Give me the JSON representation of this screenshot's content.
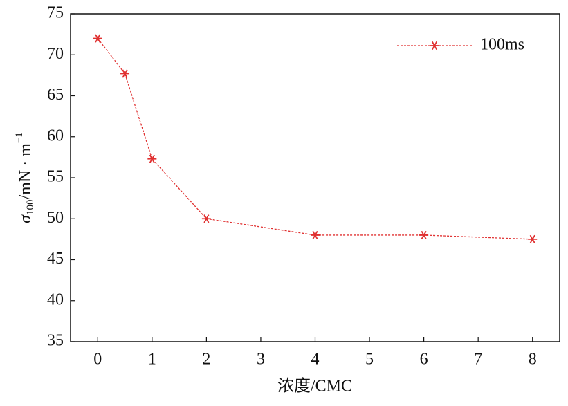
{
  "chart_data": {
    "type": "line",
    "x": [
      0,
      0.5,
      1,
      2,
      4,
      6,
      8
    ],
    "series": [
      {
        "name": "100ms",
        "color": "#e03030",
        "values": [
          72,
          67.7,
          57.3,
          50,
          48,
          48,
          47.5
        ]
      }
    ],
    "xlim": [
      -0.5,
      8.5
    ],
    "xticks": [
      0,
      1,
      2,
      3,
      4,
      5,
      6,
      7,
      8
    ],
    "ylim": [
      35,
      75
    ],
    "yticks": [
      35,
      40,
      45,
      50,
      55,
      60,
      65,
      70,
      75
    ],
    "xlabel": "浓度/CMC",
    "ylabel": {
      "symbol": "σ",
      "sub": "100",
      "unit": "/mN · m",
      "sup": "−1"
    },
    "legend": "upper right",
    "grid": false
  }
}
